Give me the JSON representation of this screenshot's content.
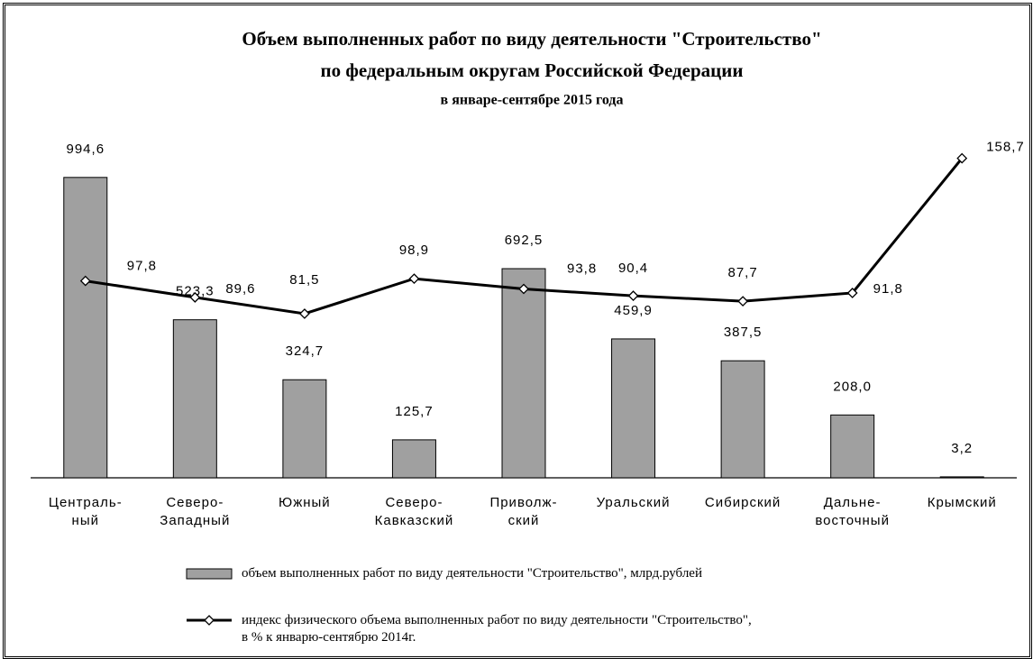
{
  "chart_data": {
    "type": "bar+line",
    "title": "Объем выполненных работ по виду деятельности \"Строительство\"",
    "subtitle": "по федеральным округам Российской Федерации",
    "subtitle2": "в январе-сентябре 2015 года",
    "categories": [
      "Централь-\nный",
      "Северо-\nЗападный",
      "Южный",
      "Северо-\nКавказский",
      "Приволж-\nский",
      "Уральский",
      "Сибирский",
      "Дальне-\nвосточный",
      "Крымский"
    ],
    "ylim": [
      0,
      1000
    ],
    "y2lim": [
      0,
      150
    ],
    "series": [
      {
        "name": "объем выполненных работ по виду деятельности \"Строительство\", млрд.рублей",
        "color": "#a0a0a0",
        "values": [
          994.6,
          523.3,
          324.7,
          125.7,
          692.5,
          459.9,
          387.5,
          208.0,
          3.2
        ],
        "value_labels": [
          "994,6",
          "523,3",
          "324,7",
          "125,7",
          "692,5",
          "459,9",
          "387,5",
          "208,0",
          "3,2"
        ]
      },
      {
        "name": "индекс физического объема выполненных работ по виду деятельности \"Строительство\", в % к январю-сентябрю 2014г.",
        "color": "#000000",
        "axis": "y2",
        "values": [
          97.8,
          89.6,
          81.5,
          98.9,
          93.8,
          90.4,
          87.7,
          91.8,
          158.7
        ],
        "value_labels": [
          "97,8",
          "89,6",
          "81,5",
          "98,9",
          "93,8",
          "90,4",
          "87,7",
          "91,8",
          "158,7"
        ]
      }
    ]
  }
}
